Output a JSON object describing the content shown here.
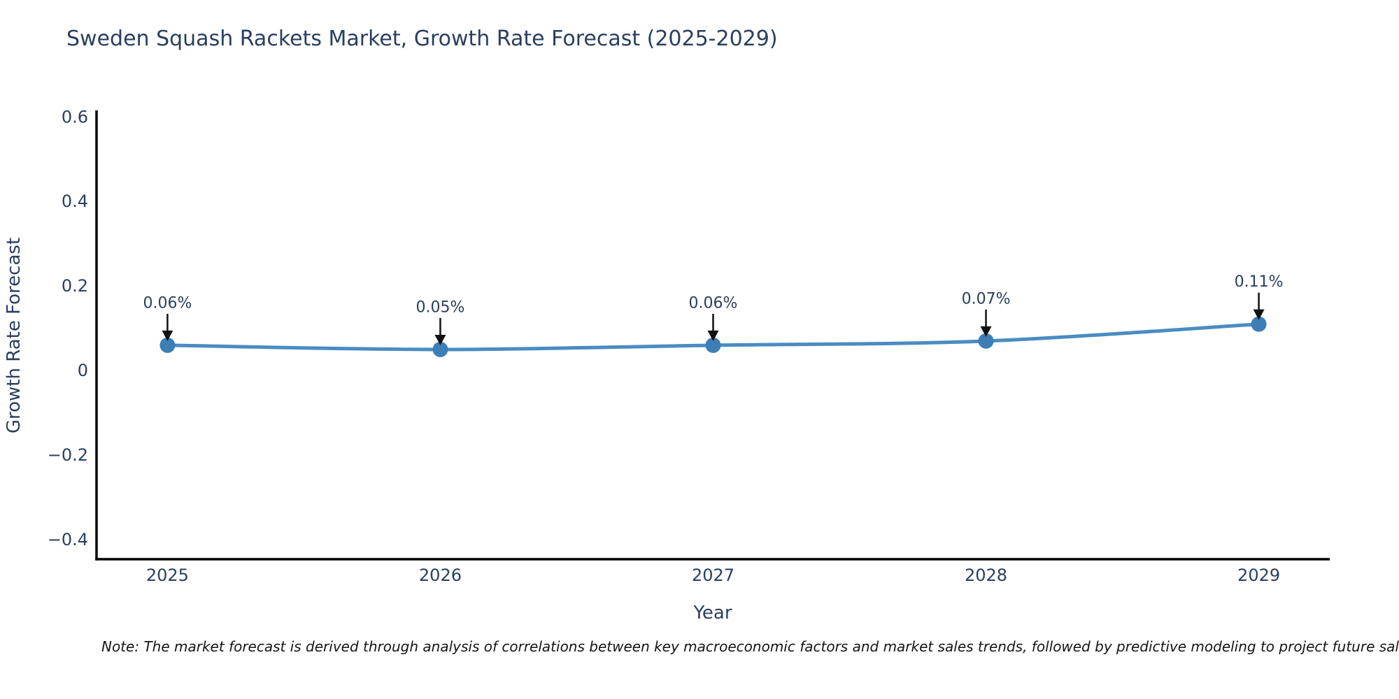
{
  "chart": {
    "title": "Sweden Squash Rackets Market, Growth Rate Forecast (2025-2029)",
    "note": "Note: The market forecast is derived through analysis of correlations between key macroeconomic factors and market sales trends, followed by predictive modeling to project future sales."
  },
  "chart_data": {
    "type": "line",
    "title": "Sweden Squash Rackets Market, Growth Rate Forecast (2025-2029)",
    "xlabel": "Year",
    "ylabel": "Growth Rate Forecast",
    "x": [
      2025,
      2026,
      2027,
      2028,
      2029
    ],
    "series": [
      {
        "name": "Growth Rate Forecast",
        "values": [
          0.06,
          0.05,
          0.06,
          0.07,
          0.11
        ],
        "point_labels": [
          "0.06%",
          "0.05%",
          "0.06%",
          "0.07%",
          "0.11%"
        ]
      }
    ],
    "xlim": [
      2024.74,
      2029.26
    ],
    "ylim": [
      -0.446,
      0.612
    ],
    "xticks": [
      {
        "value": 2025,
        "label": "2025"
      },
      {
        "value": 2026,
        "label": "2026"
      },
      {
        "value": 2027,
        "label": "2027"
      },
      {
        "value": 2028,
        "label": "2028"
      },
      {
        "value": 2029,
        "label": "2029"
      }
    ],
    "yticks": [
      {
        "value": -0.4,
        "label": "−0.4"
      },
      {
        "value": -0.2,
        "label": "−0.2"
      },
      {
        "value": 0,
        "label": "0"
      },
      {
        "value": 0.2,
        "label": "0.2"
      },
      {
        "value": 0.4,
        "label": "0.4"
      },
      {
        "value": 0.6,
        "label": "0.6"
      }
    ],
    "grid": false,
    "legend": "none",
    "colors": {
      "line": "#4a8cc2",
      "marker": "#3c7eb5",
      "axis": "#000000",
      "tick_text": "#2a3f5f",
      "title_text": "#2a3f5f",
      "annotation_text": "#2a3f5f",
      "annotation_arrow": "#111111"
    }
  }
}
